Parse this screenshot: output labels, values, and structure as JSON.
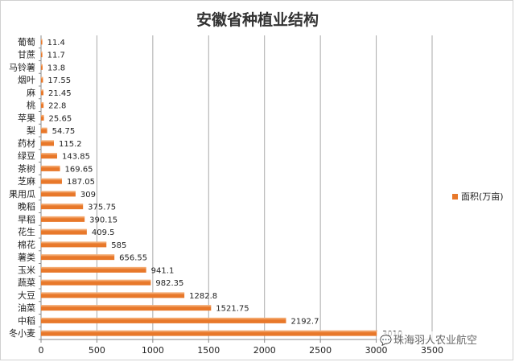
{
  "chart_data": {
    "type": "bar",
    "orientation": "horizontal",
    "title": "安徽省种植业结构",
    "categories": [
      "冬小麦",
      "中稻",
      "油菜",
      "大豆",
      "蔬菜",
      "玉米",
      "薯类",
      "棉花",
      "花生",
      "早稻",
      "晚稻",
      "果用瓜",
      "芝麻",
      "茶树",
      "绿豆",
      "药材",
      "梨",
      "苹果",
      "桃",
      "麻",
      "烟叶",
      "马铃薯",
      "甘蔗",
      "葡萄"
    ],
    "series": [
      {
        "name": "面积(万亩)",
        "values": [
          3010,
          2192.7,
          1521.75,
          1282.8,
          982.35,
          941.1,
          656.55,
          585,
          409.5,
          390.15,
          375.75,
          309,
          187.05,
          169.65,
          143.85,
          115.2,
          54.75,
          25.65,
          22.8,
          21.45,
          17.55,
          13.8,
          11.7,
          11.4
        ],
        "labels": [
          "3010",
          "2192.7",
          "1521.75",
          "1282.8",
          "982.35",
          "941.1",
          "656.55",
          "585",
          "409.5",
          "390.15",
          "375.75",
          "309",
          "187.05",
          "169.65",
          "143.85",
          "115.2",
          "54.75",
          "25.65",
          "22.8",
          "21.45",
          "17.55",
          "13.8",
          "11.7",
          "11.4"
        ]
      }
    ],
    "xlim": [
      0,
      3500
    ],
    "xticks": [
      "0",
      "500",
      "1000",
      "1500",
      "2000",
      "2500",
      "3000",
      "3500"
    ],
    "grid": true,
    "legend_position": "right",
    "bar_color": "#E8782A",
    "bar_highlight": "#F5B07A",
    "grid_color": "#aaaaaa"
  },
  "watermark": {
    "text": "珠海羽人农业航空"
  }
}
